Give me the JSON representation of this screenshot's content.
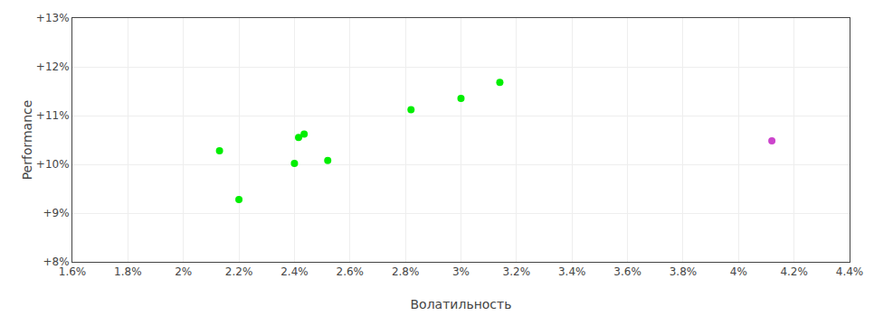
{
  "chart_data": {
    "type": "scatter",
    "xlabel": "Волатильность",
    "ylabel": "Performance",
    "x": [
      2.13,
      2.2,
      2.4,
      2.415,
      2.435,
      2.52,
      2.82,
      3.0,
      3.14,
      4.12
    ],
    "values": [
      10.28,
      9.28,
      10.02,
      10.55,
      10.62,
      10.08,
      11.12,
      11.35,
      11.68,
      10.48
    ],
    "colors": [
      "#00ee00",
      "#00ee00",
      "#00ee00",
      "#00ee00",
      "#00ee00",
      "#00ee00",
      "#00ee00",
      "#00ee00",
      "#00ee00",
      "#cc44cc"
    ],
    "marker": "circle",
    "xlim": [
      1.6,
      4.4
    ],
    "ylim": [
      8.0,
      13.0
    ],
    "xticks": [
      {
        "value": 1.6,
        "label": "1.6%"
      },
      {
        "value": 1.8,
        "label": "1.8%"
      },
      {
        "value": 2.0,
        "label": "2%"
      },
      {
        "value": 2.2,
        "label": "2.2%"
      },
      {
        "value": 2.4,
        "label": "2.4%"
      },
      {
        "value": 2.6,
        "label": "2.6%"
      },
      {
        "value": 2.8,
        "label": "2.8%"
      },
      {
        "value": 3.0,
        "label": "3%"
      },
      {
        "value": 3.2,
        "label": "3.2%"
      },
      {
        "value": 3.4,
        "label": "3.4%"
      },
      {
        "value": 3.6,
        "label": "3.6%"
      },
      {
        "value": 3.8,
        "label": "3.8%"
      },
      {
        "value": 4.0,
        "label": "4%"
      },
      {
        "value": 4.2,
        "label": "4.2%"
      },
      {
        "value": 4.4,
        "label": "4.4%"
      }
    ],
    "yticks": [
      {
        "value": 8,
        "label": "+8%"
      },
      {
        "value": 9,
        "label": "+9%"
      },
      {
        "value": 10,
        "label": "+10%"
      },
      {
        "value": 11,
        "label": "+11%"
      },
      {
        "value": 12,
        "label": "+12%"
      },
      {
        "value": 13,
        "label": "+13%"
      }
    ],
    "grid": true
  }
}
